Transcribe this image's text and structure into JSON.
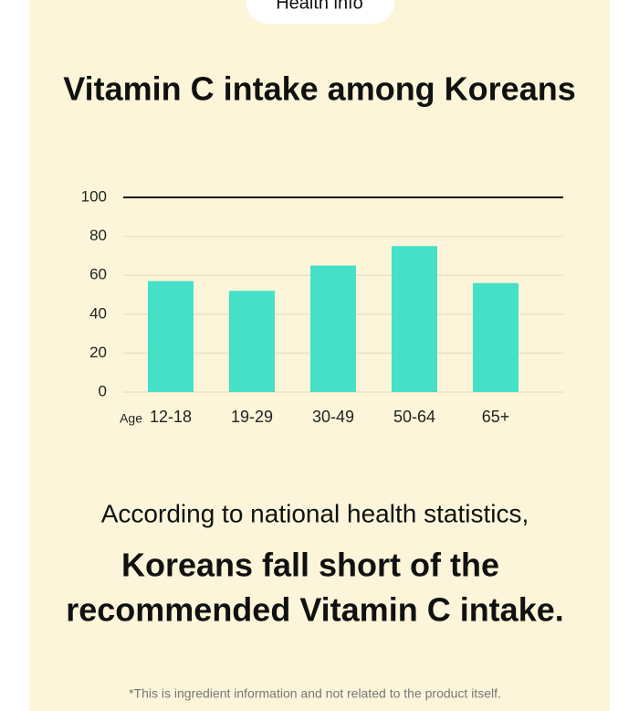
{
  "badge": "Health info",
  "chart_data": {
    "type": "bar",
    "title": "Vitamin C intake among Koreans",
    "xlabel": "Age",
    "categories": [
      "12-18",
      "19-29",
      "30-49",
      "50-64",
      "65+"
    ],
    "values": [
      57,
      52,
      65,
      75,
      56
    ],
    "color": "#45e0c8",
    "ylim": [
      0,
      100
    ],
    "yticks": [
      0,
      20,
      40,
      60,
      80,
      100
    ],
    "grid": true
  },
  "text": {
    "intro": "According to national health statistics,",
    "headline": [
      "Koreans fall short of the",
      "recommended Vitamin C intake."
    ]
  },
  "footnote": "*This is ingredient information and not related to the product itself."
}
